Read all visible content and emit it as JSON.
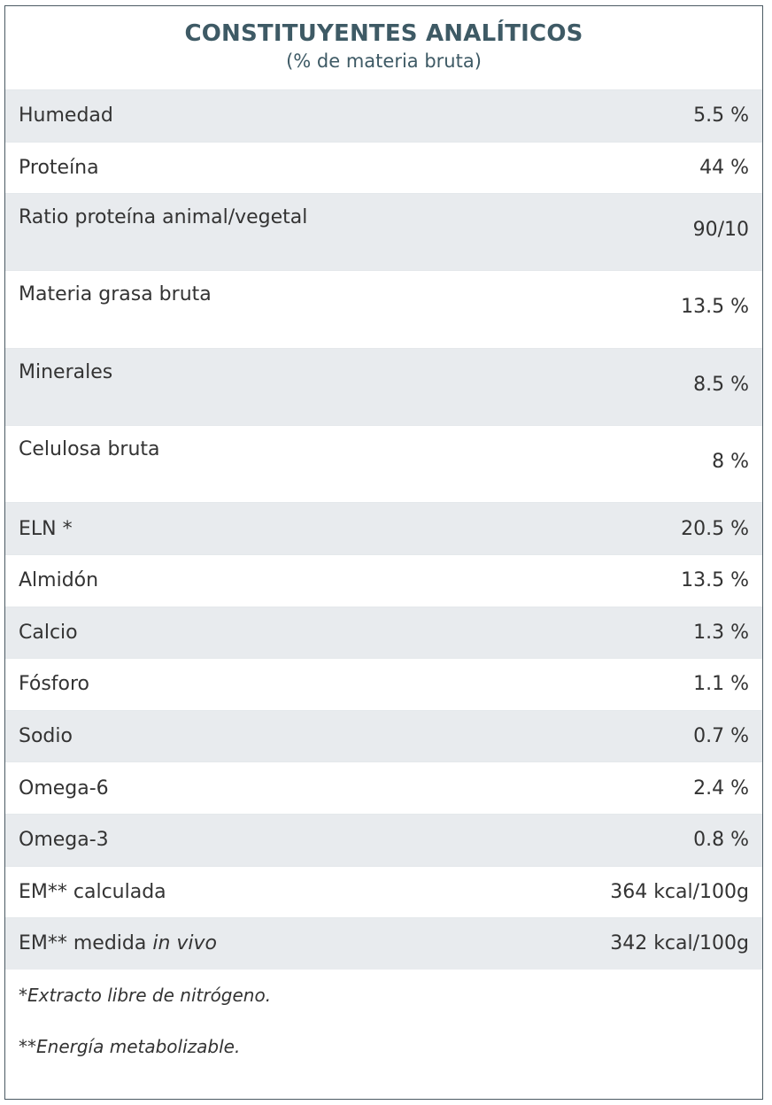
{
  "table": {
    "title": "CONSTITUYENTES ANALÍTICOS",
    "subtitle": "(% de materia bruta)",
    "rows": [
      {
        "label": "Humedad",
        "value": "5.5 %"
      },
      {
        "label": "Proteína",
        "value": "44 %"
      },
      {
        "label": "Ratio proteína animal/vegetal",
        "value": "90/10"
      },
      {
        "label": "Materia grasa bruta",
        "value": "13.5 %"
      },
      {
        "label": "Minerales",
        "value": "8.5 %"
      },
      {
        "label": "Celulosa bruta",
        "value": "8 %"
      },
      {
        "label": "ELN *",
        "value": "20.5 %"
      },
      {
        "label": "Almidón",
        "value": "13.5 %"
      },
      {
        "label": "Calcio",
        "value": "1.3 %"
      },
      {
        "label": "Fósforo",
        "value": "1.1 %"
      },
      {
        "label": "Sodio",
        "value": "0.7 %"
      },
      {
        "label": "Omega-6",
        "value": "2.4 %"
      },
      {
        "label": "Omega-3",
        "value": "0.8 %"
      },
      {
        "label": "EM** calculada",
        "value": "364 kcal/100g"
      },
      {
        "label_prefix": "EM** medida ",
        "label_italic": "in vivo",
        "value": "342 kcal/100g"
      }
    ],
    "footnotes": [
      "*Extracto libre de nitrógeno.",
      "**Energía metabolizable."
    ]
  },
  "colors": {
    "title": "#3e5a65",
    "row_shade": "#e8ebee",
    "border": "#4b5a63",
    "text": "#333333"
  }
}
